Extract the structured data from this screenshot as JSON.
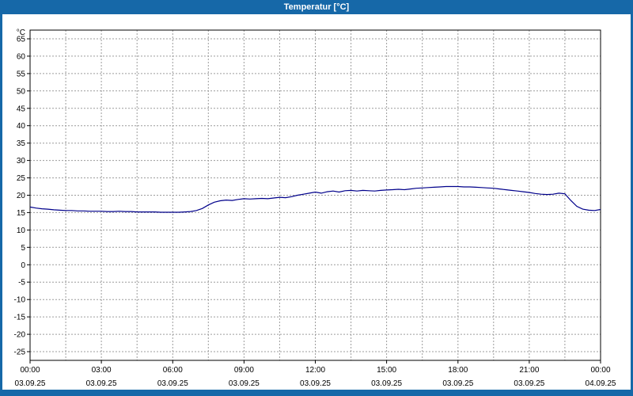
{
  "window": {
    "title": "Temperatur [°C]"
  },
  "colors": {
    "frame": "#1668a8",
    "titlebar_text": "#ffffff",
    "plot_bg": "#ffffff",
    "grid": "#9c9c9c",
    "axis": "#000000",
    "line": "#00008b"
  },
  "chart_data": {
    "type": "line",
    "title": "Temperatur [°C]",
    "ylabel": "°C",
    "xlabel": "",
    "grid": "dashed",
    "legend": "none",
    "xlim": [
      0,
      24
    ],
    "ylim": [
      -27.5,
      67.5
    ],
    "x_minor_step": 1.5,
    "y_ticks": [
      65,
      60,
      55,
      50,
      45,
      40,
      35,
      30,
      25,
      20,
      15,
      10,
      5,
      0,
      -5,
      -10,
      -15,
      -20,
      -25
    ],
    "x_tick_hours": [
      0,
      3,
      6,
      9,
      12,
      15,
      18,
      21,
      24
    ],
    "x_tick_times": [
      "00:00",
      "03:00",
      "06:00",
      "09:00",
      "12:00",
      "15:00",
      "18:00",
      "21:00",
      "00:00"
    ],
    "x_tick_dates": [
      "03.09.25",
      "03.09.25",
      "03.09.25",
      "03.09.25",
      "03.09.25",
      "03.09.25",
      "03.09.25",
      "03.09.25",
      "04.09.25"
    ],
    "series": [
      {
        "name": "Temperatur",
        "color": "#00008b",
        "x_start": 0,
        "x_step": 0.25,
        "values": [
          16.6,
          16.3,
          16.1,
          16.0,
          15.8,
          15.7,
          15.6,
          15.6,
          15.5,
          15.5,
          15.4,
          15.4,
          15.4,
          15.3,
          15.3,
          15.4,
          15.3,
          15.3,
          15.2,
          15.2,
          15.2,
          15.2,
          15.1,
          15.1,
          15.1,
          15.1,
          15.2,
          15.3,
          15.6,
          16.2,
          17.2,
          18.0,
          18.4,
          18.6,
          18.5,
          18.8,
          19.0,
          18.9,
          19.0,
          19.1,
          19.0,
          19.2,
          19.4,
          19.3,
          19.6,
          20.0,
          20.3,
          20.6,
          20.9,
          20.6,
          21.0,
          21.2,
          20.9,
          21.3,
          21.4,
          21.2,
          21.4,
          21.3,
          21.2,
          21.4,
          21.5,
          21.6,
          21.7,
          21.6,
          21.8,
          22.0,
          22.1,
          22.2,
          22.3,
          22.4,
          22.5,
          22.5,
          22.5,
          22.4,
          22.4,
          22.3,
          22.2,
          22.1,
          22.0,
          21.8,
          21.6,
          21.4,
          21.2,
          21.0,
          20.8,
          20.5,
          20.3,
          20.2,
          20.3,
          20.6,
          20.4,
          18.5,
          16.8,
          16.0,
          15.7,
          15.6,
          15.9
        ]
      }
    ]
  }
}
